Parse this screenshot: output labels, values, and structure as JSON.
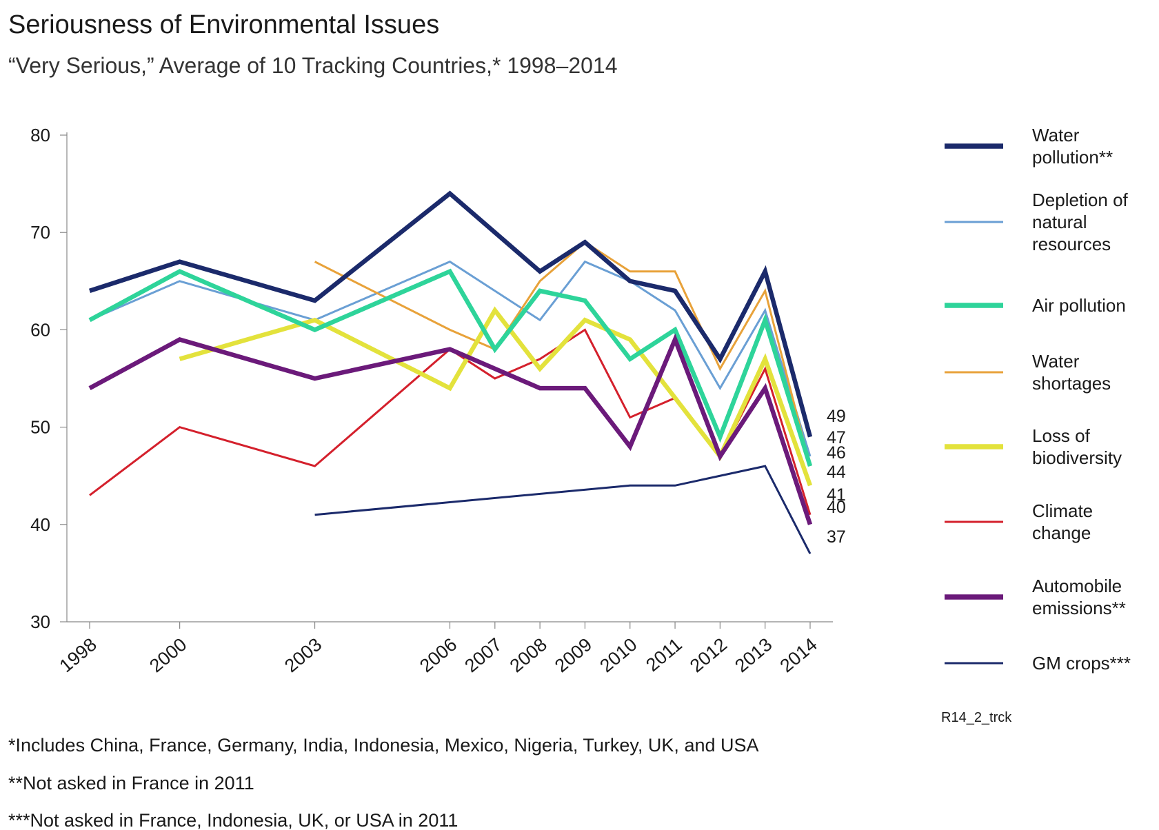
{
  "title": "Seriousness of Environmental Issues",
  "subtitle": "“Very Serious,” Average of 10 Tracking Countries,* 1998–2014",
  "chart_code": "R14_2_trck",
  "footnotes": [
    "*Includes China, France, Germany, India, Indonesia, Mexico, Nigeria, Turkey, UK, and USA",
    "**Not asked in France in 2011",
    "***Not asked in France, Indonesia, UK, or USA in 2011"
  ],
  "chart_data": {
    "type": "line",
    "title": "Seriousness of Environmental Issues",
    "subtitle": "“Very Serious,” Average of 10 Tracking Countries,* 1998–2014",
    "xlabel": "",
    "ylabel": "",
    "x": [
      1998,
      2000,
      2003,
      2006,
      2007,
      2008,
      2009,
      2010,
      2011,
      2012,
      2013,
      2014
    ],
    "x_tick_labels": [
      "1998",
      "2000",
      "2003",
      "2006",
      "2007",
      "2008",
      "2009",
      "2010",
      "2011",
      "2012",
      "2013",
      "2014"
    ],
    "ylim": [
      30,
      80
    ],
    "y_ticks": [
      30,
      40,
      50,
      60,
      70,
      80
    ],
    "legend_position": "right",
    "series": [
      {
        "name": "Depletion of natural resources",
        "legend_lines": [
          "Depletion of",
          "natural",
          "resources"
        ],
        "color": "#6a9fd4",
        "weight": "thin",
        "values": [
          61,
          65,
          61,
          67,
          null,
          61,
          67,
          65,
          62,
          54,
          62,
          47
        ]
      },
      {
        "name": "Water shortages",
        "legend_lines": [
          "Water",
          "shortages"
        ],
        "color": "#e8a23a",
        "weight": "thin",
        "values": [
          null,
          null,
          67,
          60,
          58,
          65,
          69,
          66,
          66,
          56,
          64,
          46
        ]
      },
      {
        "name": "Climate change",
        "legend_lines": [
          "Climate",
          "change"
        ],
        "color": "#d4202c",
        "weight": "thin",
        "values": [
          43,
          50,
          46,
          58,
          55,
          57,
          60,
          51,
          53,
          47,
          56,
          41
        ]
      },
      {
        "name": "GM crops***",
        "legend_lines": [
          "GM crops***"
        ],
        "color": "#1b2a6b",
        "weight": "thin",
        "values": [
          null,
          null,
          41,
          null,
          null,
          null,
          null,
          44,
          44,
          null,
          46,
          37
        ]
      },
      {
        "name": "Loss of biodiversity",
        "legend_lines": [
          "Loss of",
          "biodiversity"
        ],
        "color": "#e3e23c",
        "weight": "thick",
        "values": [
          null,
          57,
          61,
          54,
          62,
          56,
          61,
          59,
          53,
          47,
          57,
          44
        ]
      },
      {
        "name": "Air pollution",
        "legend_lines": [
          "Air pollution"
        ],
        "color": "#2ed49a",
        "weight": "thick",
        "values": [
          61,
          66,
          60,
          66,
          58,
          64,
          63,
          57,
          60,
          49,
          61,
          46
        ]
      },
      {
        "name": "Automobile emissions**",
        "legend_lines": [
          "Automobile",
          "emissions**"
        ],
        "color": "#6b1a7a",
        "weight": "thick",
        "values": [
          54,
          59,
          55,
          58,
          null,
          54,
          54,
          48,
          59,
          47,
          54,
          40
        ]
      },
      {
        "name": "Water pollution**",
        "legend_lines": [
          "Water",
          "pollution**"
        ],
        "color": "#1b2a6b",
        "weight": "thick",
        "values": [
          64,
          67,
          63,
          74,
          null,
          66,
          69,
          65,
          64,
          57,
          66,
          49
        ]
      }
    ],
    "legend_order": [
      "Water pollution**",
      "Depletion of natural resources",
      "Air pollution",
      "Water shortages",
      "Loss of biodiversity",
      "Climate change",
      "Automobile emissions**",
      "GM crops***"
    ],
    "end_labels": [
      "49",
      "47",
      "46",
      "44",
      "41",
      "40",
      "37"
    ]
  }
}
